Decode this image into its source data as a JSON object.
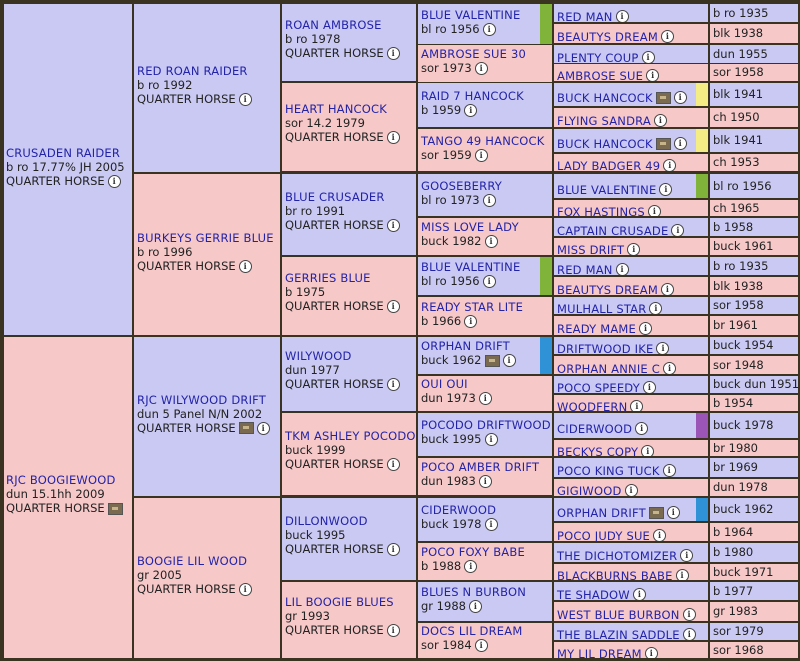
{
  "gen1": [
    {
      "name": "CRUSADEN RAIDER",
      "l2": "b ro 17.77% JH 2005",
      "l3": "QUARTER HORSE"
    },
    {
      "name": "RJC BOOGIEWOOD",
      "l2": "dun 15.1hh 2009",
      "l3": "QUARTER HORSE"
    }
  ],
  "gen2": [
    {
      "name": "RED ROAN RAIDER",
      "l2": "b ro 1992",
      "l3": "QUARTER HORSE"
    },
    {
      "name": "BURKEYS GERRIE BLUE",
      "l2": "b ro 1996",
      "l3": "QUARTER HORSE"
    },
    {
      "name": "RJC WILYWOOD DRIFT",
      "l2": "dun 5 Panel N/N 2002",
      "l3": "QUARTER HORSE"
    },
    {
      "name": "BOOGIE LIL WOOD",
      "l2": "gr 2005",
      "l3": "QUARTER HORSE"
    }
  ],
  "gen3": [
    {
      "name": "ROAN AMBROSE",
      "l2": "b ro 1978",
      "l3": "QUARTER HORSE"
    },
    {
      "name": "HEART HANCOCK",
      "l2": "sor 14.2 1979",
      "l3": "QUARTER HORSE"
    },
    {
      "name": "BLUE CRUSADER",
      "l2": "br ro 1991",
      "l3": "QUARTER HORSE"
    },
    {
      "name": "GERRIES BLUE",
      "l2": "b 1975",
      "l3": "QUARTER HORSE"
    },
    {
      "name": "WILYWOOD",
      "l2": "dun 1977",
      "l3": "QUARTER HORSE"
    },
    {
      "name": "TKM ASHLEY POCODO",
      "l2": "buck 1999",
      "l3": "QUARTER HORSE"
    },
    {
      "name": "DILLONWOOD",
      "l2": "buck 1995",
      "l3": "QUARTER HORSE"
    },
    {
      "name": "LIL BOOGIE BLUES",
      "l2": "gr 1993",
      "l3": "QUARTER HORSE"
    }
  ],
  "gen4": [
    {
      "name": "BLUE VALENTINE",
      "l2": "bl ro 1956"
    },
    {
      "name": "AMBROSE SUE 30",
      "l2": "sor 1973"
    },
    {
      "name": "RAID 7 HANCOCK",
      "l2": "b 1959"
    },
    {
      "name": "TANGO 49 HANCOCK",
      "l2": "sor 1959"
    },
    {
      "name": "GOOSEBERRY",
      "l2": "bl ro 1973"
    },
    {
      "name": "MISS LOVE LADY",
      "l2": "buck 1982"
    },
    {
      "name": "BLUE VALENTINE",
      "l2": "bl ro 1956"
    },
    {
      "name": "READY STAR LITE",
      "l2": "b 1966"
    },
    {
      "name": "ORPHAN DRIFT",
      "l2": "buck 1962"
    },
    {
      "name": "OUI OUI",
      "l2": "dun 1973"
    },
    {
      "name": "POCODO DRIFTWOOD",
      "l2": "buck 1995"
    },
    {
      "name": "POCO AMBER DRIFT",
      "l2": "dun 1983"
    },
    {
      "name": "CIDERWOOD",
      "l2": "buck 1978"
    },
    {
      "name": "POCO FOXY BABE",
      "l2": "b 1988"
    },
    {
      "name": "BLUES N BURBON",
      "l2": "gr 1988"
    },
    {
      "name": "DOCS LIL DREAM",
      "l2": "sor 1984"
    }
  ],
  "gen5": [
    {
      "name": "RED MAN",
      "date": "b ro 1935"
    },
    {
      "name": "BEAUTYS DREAM",
      "date": "blk 1938"
    },
    {
      "name": "PLENTY COUP",
      "date": "dun 1955"
    },
    {
      "name": "AMBROSE SUE",
      "date": "sor 1958"
    },
    {
      "name": "BUCK HANCOCK",
      "date": "blk 1941"
    },
    {
      "name": "FLYING SANDRA",
      "date": "ch 1950"
    },
    {
      "name": "BUCK HANCOCK",
      "date": "blk 1941"
    },
    {
      "name": "LADY BADGER 49",
      "date": "ch 1953"
    },
    {
      "name": "BLUE VALENTINE",
      "date": "bl ro 1956"
    },
    {
      "name": "FOX HASTINGS",
      "date": "ch 1965"
    },
    {
      "name": "CAPTAIN CRUSADE",
      "date": "b 1958"
    },
    {
      "name": "MISS DRIFT",
      "date": "buck 1961"
    },
    {
      "name": "RED MAN",
      "date": "b ro 1935"
    },
    {
      "name": "BEAUTYS DREAM",
      "date": "blk 1938"
    },
    {
      "name": "MULHALL STAR",
      "date": "sor 1958"
    },
    {
      "name": "READY MAME",
      "date": "br 1961"
    },
    {
      "name": "DRIFTWOOD IKE",
      "date": "buck 1954"
    },
    {
      "name": "ORPHAN ANNIE C",
      "date": "sor 1948"
    },
    {
      "name": "POCO SPEEDY",
      "date": "buck dun 1951"
    },
    {
      "name": "WOODFERN",
      "date": "b 1954"
    },
    {
      "name": "CIDERWOOD",
      "date": "buck 1978"
    },
    {
      "name": "BECKYS COPY",
      "date": "br 1980"
    },
    {
      "name": "POCO KING TUCK",
      "date": "br 1969"
    },
    {
      "name": "GIGIWOOD",
      "date": "dun 1978"
    },
    {
      "name": "ORPHAN DRIFT",
      "date": "buck 1962"
    },
    {
      "name": "POCO JUDY SUE",
      "date": "b 1964"
    },
    {
      "name": "THE DICHOTOMIZER",
      "date": "b 1980"
    },
    {
      "name": "BLACKBURNS BABE",
      "date": "buck 1971"
    },
    {
      "name": "TE SHADOW",
      "date": "b 1977"
    },
    {
      "name": "WEST BLUE BURBON",
      "date": "gr 1983"
    },
    {
      "name": "THE BLAZIN SADDLE",
      "date": "sor 1979"
    },
    {
      "name": "MY LIL DREAM",
      "date": "sor 1968"
    }
  ],
  "colors": {
    "male": "#c9c9f4",
    "female": "#f6c8c8",
    "border": "#3a3322",
    "link": "#2323a8",
    "green_bar": "#7fb33a",
    "blue_bar": "#2f92d6",
    "purple_bar": "#9a55b6",
    "yellow_bar": "#f4ec84"
  }
}
